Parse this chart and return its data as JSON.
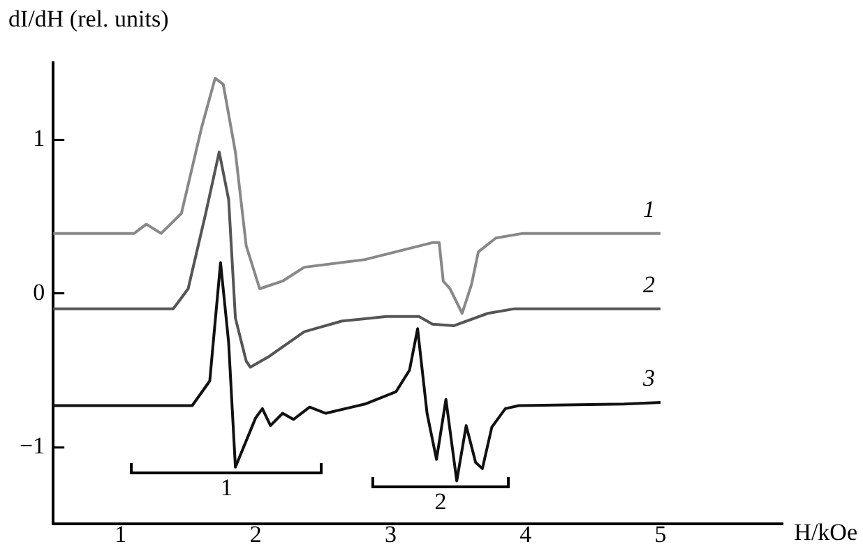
{
  "chart_data": {
    "type": "line",
    "xlabel": "H/kOe",
    "ylabel": "dI/dH (rel. units)",
    "xlim": [
      0.5,
      5.9
    ],
    "xticks": [
      1,
      2,
      3,
      4,
      5
    ],
    "ylim": [
      -1.5,
      1.5
    ],
    "yticks": [
      -1,
      0,
      1
    ],
    "grid": false,
    "legend": false,
    "marker": "none",
    "line_style": "solid",
    "series": [
      {
        "name": "1",
        "color": "#888888",
        "x": [
          0.5,
          1.1,
          1.19,
          1.3,
          1.45,
          1.6,
          1.7,
          1.76,
          1.85,
          1.93,
          2.03,
          2.2,
          2.36,
          2.81,
          3.31,
          3.36,
          3.39,
          3.44,
          3.53,
          3.6,
          3.65,
          3.78,
          3.98,
          5.0
        ],
        "values": [
          0.39,
          0.39,
          0.45,
          0.39,
          0.52,
          1.08,
          1.4,
          1.36,
          0.92,
          0.31,
          0.03,
          0.08,
          0.17,
          0.22,
          0.33,
          0.33,
          0.08,
          0.03,
          -0.13,
          0.06,
          0.27,
          0.36,
          0.39,
          0.39
        ]
      },
      {
        "name": "2",
        "color": "#555555",
        "x": [
          0.5,
          1.39,
          1.5,
          1.63,
          1.73,
          1.8,
          1.85,
          1.93,
          1.96,
          2.1,
          2.36,
          2.64,
          2.97,
          3.21,
          3.31,
          3.47,
          3.72,
          3.92,
          5.0
        ],
        "values": [
          -0.1,
          -0.1,
          0.03,
          0.52,
          0.92,
          0.61,
          -0.16,
          -0.44,
          -0.48,
          -0.41,
          -0.25,
          -0.18,
          -0.15,
          -0.15,
          -0.2,
          -0.21,
          -0.13,
          -0.1,
          -0.1
        ]
      },
      {
        "name": "3",
        "color": "#111111",
        "x": [
          0.5,
          1.53,
          1.66,
          1.74,
          1.8,
          1.85,
          2.0,
          2.05,
          2.11,
          2.2,
          2.28,
          2.4,
          2.52,
          2.81,
          3.04,
          3.14,
          3.2,
          3.27,
          3.34,
          3.41,
          3.49,
          3.56,
          3.63,
          3.68,
          3.75,
          3.85,
          3.95,
          4.73,
          5.0
        ],
        "values": [
          -0.73,
          -0.73,
          -0.57,
          0.2,
          -0.32,
          -1.13,
          -0.81,
          -0.75,
          -0.86,
          -0.78,
          -0.82,
          -0.74,
          -0.78,
          -0.72,
          -0.64,
          -0.5,
          -0.23,
          -0.78,
          -1.08,
          -0.69,
          -1.22,
          -0.86,
          -1.1,
          -1.14,
          -0.87,
          -0.75,
          -0.73,
          -0.72,
          -0.71
        ]
      }
    ],
    "annotations": [
      "1",
      "2"
    ]
  }
}
